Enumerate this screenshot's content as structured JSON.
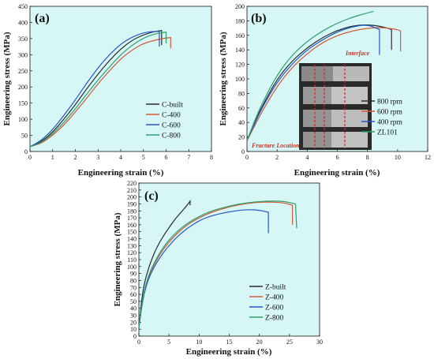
{
  "chart_data": [
    {
      "type": "line",
      "panel_label": "(a)",
      "xlabel": "Engineering strain (%)",
      "ylabel": "Engineering stress (MPa)",
      "xlim": [
        0,
        8
      ],
      "ylim": [
        0,
        450
      ],
      "xticks": [
        0,
        1,
        2,
        3,
        4,
        5,
        6,
        7,
        8
      ],
      "yticks": [
        0,
        50,
        100,
        150,
        200,
        250,
        300,
        350,
        400,
        450
      ],
      "grid": false,
      "legend_position": "center-right",
      "series": [
        {
          "name": "C-built",
          "color": "#2b2b2b",
          "x": [
            0,
            0.5,
            1,
            1.5,
            2,
            2.5,
            3,
            3.5,
            4,
            4.5,
            5,
            5.5,
            5.8
          ],
          "y": [
            15,
            30,
            60,
            100,
            145,
            195,
            240,
            282,
            318,
            345,
            362,
            372,
            375
          ],
          "end_x": 5.8,
          "end_y": 330
        },
        {
          "name": "C-400",
          "color": "#d35a3a",
          "x": [
            0,
            0.5,
            1,
            1.5,
            2,
            2.5,
            3,
            3.5,
            4,
            4.5,
            5,
            5.5,
            6,
            6.2
          ],
          "y": [
            15,
            25,
            50,
            82,
            122,
            165,
            210,
            250,
            287,
            315,
            335,
            345,
            352,
            353
          ],
          "end_x": 6.2,
          "end_y": 320
        },
        {
          "name": "C-600",
          "color": "#2a55c8",
          "x": [
            0,
            0.5,
            1,
            1.5,
            2,
            2.5,
            3,
            3.5,
            4,
            4.5,
            5,
            5.4,
            5.7
          ],
          "y": [
            15,
            34,
            68,
            112,
            160,
            212,
            260,
            300,
            333,
            355,
            368,
            372,
            372
          ],
          "end_x": 5.7,
          "end_y": 325
        },
        {
          "name": "C-800",
          "color": "#2ea06a",
          "x": [
            0,
            0.5,
            1,
            1.5,
            2,
            2.5,
            3,
            3.5,
            4,
            4.5,
            5,
            5.5,
            6
          ],
          "y": [
            15,
            27,
            55,
            90,
            132,
            178,
            222,
            262,
            300,
            330,
            352,
            365,
            370
          ],
          "end_x": 6.0,
          "end_y": 335
        }
      ]
    },
    {
      "type": "line",
      "panel_label": "(b)",
      "xlabel": "Engineering strain (%)",
      "ylabel": "Engineering stress (MPa)",
      "xlim": [
        0,
        12
      ],
      "ylim": [
        0,
        200
      ],
      "xticks": [
        0,
        2,
        4,
        6,
        8,
        10,
        12
      ],
      "yticks": [
        0,
        20,
        40,
        60,
        80,
        100,
        120,
        140,
        160,
        180,
        200
      ],
      "grid": false,
      "legend_position": "center-right",
      "annotations": [
        "Interface",
        "Fracture Location"
      ],
      "series": [
        {
          "name": "800 rpm",
          "color": "#2b2b2b",
          "x": [
            0,
            0.5,
            1,
            2,
            3,
            4,
            5,
            6,
            7,
            8,
            9,
            9.6
          ],
          "y": [
            15,
            40,
            62,
            100,
            125,
            143,
            157,
            167,
            173,
            175,
            172,
            168
          ],
          "end_x": 9.6,
          "end_y": 140
        },
        {
          "name": "600 rpm",
          "color": "#d35a3a",
          "x": [
            0,
            0.5,
            1,
            2,
            3,
            4,
            5,
            6,
            7,
            8,
            9,
            10,
            10.2
          ],
          "y": [
            15,
            35,
            55,
            90,
            116,
            135,
            150,
            160,
            166,
            170,
            171,
            168,
            166
          ],
          "end_x": 10.2,
          "end_y": 138
        },
        {
          "name": "400 rpm",
          "color": "#2a55c8",
          "x": [
            0,
            0.5,
            1,
            2,
            3,
            4,
            5,
            6,
            7,
            8,
            8.8
          ],
          "y": [
            15,
            38,
            60,
            96,
            121,
            140,
            154,
            165,
            172,
            175,
            168
          ],
          "end_x": 8.8,
          "end_y": 133
        },
        {
          "name": "ZL101",
          "color": "#2ea06a",
          "x": [
            0,
            0.5,
            1,
            2,
            3,
            4,
            5,
            6,
            7,
            8,
            8.4
          ],
          "y": [
            15,
            42,
            66,
            106,
            133,
            152,
            166,
            177,
            185,
            191,
            193
          ],
          "end_x": 8.4,
          "end_y": 193
        }
      ]
    },
    {
      "type": "line",
      "panel_label": "(c)",
      "xlabel": "Engineering strain (%)",
      "ylabel": "Engineering stress (MPa)",
      "xlim": [
        0,
        30
      ],
      "ylim": [
        0,
        220
      ],
      "xticks": [
        0,
        5,
        10,
        15,
        20,
        25,
        30
      ],
      "yticks": [
        0,
        10,
        20,
        30,
        40,
        50,
        60,
        70,
        80,
        90,
        100,
        110,
        120,
        130,
        140,
        150,
        160,
        170,
        180,
        190,
        200,
        210,
        220
      ],
      "grid": false,
      "legend_position": "bottom-right",
      "series": [
        {
          "name": "Z-built",
          "color": "#2b2b2b",
          "x": [
            0,
            0.5,
            1,
            2,
            3,
            4,
            5,
            6,
            7,
            8,
            8.5
          ],
          "y": [
            12,
            55,
            80,
            108,
            128,
            143,
            156,
            168,
            178,
            188,
            194
          ],
          "end_x": 8.5,
          "end_y": 188
        },
        {
          "name": "Z-400",
          "color": "#d35a3a",
          "x": [
            0,
            0.5,
            1,
            2,
            4,
            6,
            8,
            10,
            12,
            15,
            18,
            21,
            24,
            25.5
          ],
          "y": [
            12,
            45,
            68,
            95,
            125,
            145,
            160,
            170,
            178,
            186,
            191,
            193,
            192,
            188
          ],
          "end_x": 25.5,
          "end_y": 160
        },
        {
          "name": "Z-600",
          "color": "#2a55c8",
          "x": [
            0,
            0.5,
            1,
            2,
            4,
            6,
            8,
            10,
            12,
            15,
            18,
            20,
            21.5
          ],
          "y": [
            12,
            44,
            66,
            92,
            120,
            140,
            155,
            166,
            173,
            179,
            182,
            181,
            178
          ],
          "end_x": 21.5,
          "end_y": 148
        },
        {
          "name": "Z-800",
          "color": "#2ea06a",
          "x": [
            0,
            0.5,
            1,
            2,
            4,
            6,
            8,
            10,
            12,
            15,
            18,
            21,
            24,
            26
          ],
          "y": [
            12,
            46,
            70,
            97,
            128,
            148,
            162,
            172,
            180,
            187,
            192,
            194,
            194,
            190
          ],
          "end_x": 26.2,
          "end_y": 155
        }
      ]
    }
  ]
}
